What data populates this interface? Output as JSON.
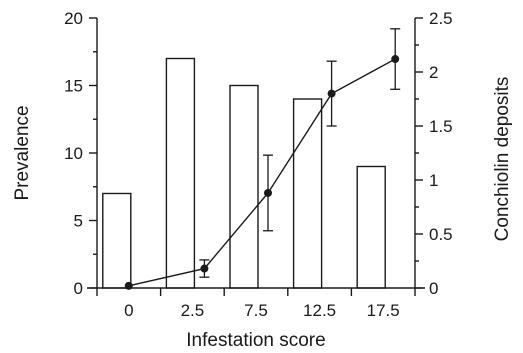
{
  "chart_data": {
    "type": "bar+line",
    "categories": [
      "0",
      "2.5",
      "7.5",
      "12.5",
      "17.5"
    ],
    "xlabel": "Infestation score",
    "ylabel_left": "Prevalence",
    "ylabel_right": "Conchiolin deposits",
    "ylim_left": [
      0,
      20
    ],
    "yticks_left": [
      "0",
      "5",
      "10",
      "15",
      "20"
    ],
    "ylim_right": [
      0,
      2.5
    ],
    "yticks_right": [
      "0",
      "0.5",
      "1",
      "1.5",
      "2",
      "2.5"
    ],
    "grid": false,
    "bars": {
      "axis": "left",
      "values": [
        7,
        17,
        15,
        14,
        9
      ]
    },
    "line": {
      "axis": "right",
      "values": [
        0.02,
        0.18,
        0.88,
        1.8,
        2.12
      ],
      "errors": [
        0,
        0.08,
        0.35,
        0.3,
        0.28
      ]
    }
  }
}
